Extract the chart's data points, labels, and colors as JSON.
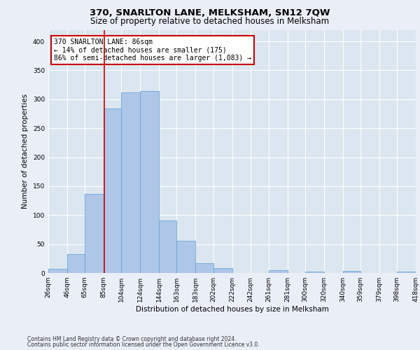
{
  "title": "370, SNARLTON LANE, MELKSHAM, SN12 7QW",
  "subtitle": "Size of property relative to detached houses in Melksham",
  "xlabel": "Distribution of detached houses by size in Melksham",
  "ylabel": "Number of detached properties",
  "footnote1": "Contains HM Land Registry data © Crown copyright and database right 2024.",
  "footnote2": "Contains public sector information licensed under the Open Government Licence v3.0.",
  "annotation_title": "370 SNARLTON LANE: 86sqm",
  "annotation_line1": "← 14% of detached houses are smaller (175)",
  "annotation_line2": "86% of semi-detached houses are larger (1,083) →",
  "property_size": 86,
  "bin_edges": [
    26,
    46,
    65,
    85,
    104,
    124,
    144,
    163,
    183,
    202,
    222,
    242,
    261,
    281,
    300,
    320,
    340,
    359,
    379,
    398,
    418
  ],
  "bar_heights": [
    7,
    33,
    136,
    284,
    312,
    314,
    91,
    56,
    17,
    9,
    0,
    0,
    5,
    0,
    3,
    0,
    4,
    0,
    0,
    3
  ],
  "bar_color": "#aec6e8",
  "bar_edge_color": "#5a9fd4",
  "red_line_x": 86,
  "ylim": [
    0,
    420
  ],
  "yticks": [
    0,
    50,
    100,
    150,
    200,
    250,
    300,
    350,
    400
  ],
  "bg_color": "#eaeff7",
  "plot_bg_color": "#dce6f0",
  "grid_color": "#ffffff",
  "annotation_box_color": "#ffffff",
  "annotation_box_edge": "#cc0000",
  "red_line_color": "#cc0000",
  "title_fontsize": 9.5,
  "subtitle_fontsize": 8.5,
  "axis_label_fontsize": 7.5,
  "tick_fontsize": 6.5,
  "annotation_fontsize": 7.0,
  "ylabel_fontsize": 7.5
}
